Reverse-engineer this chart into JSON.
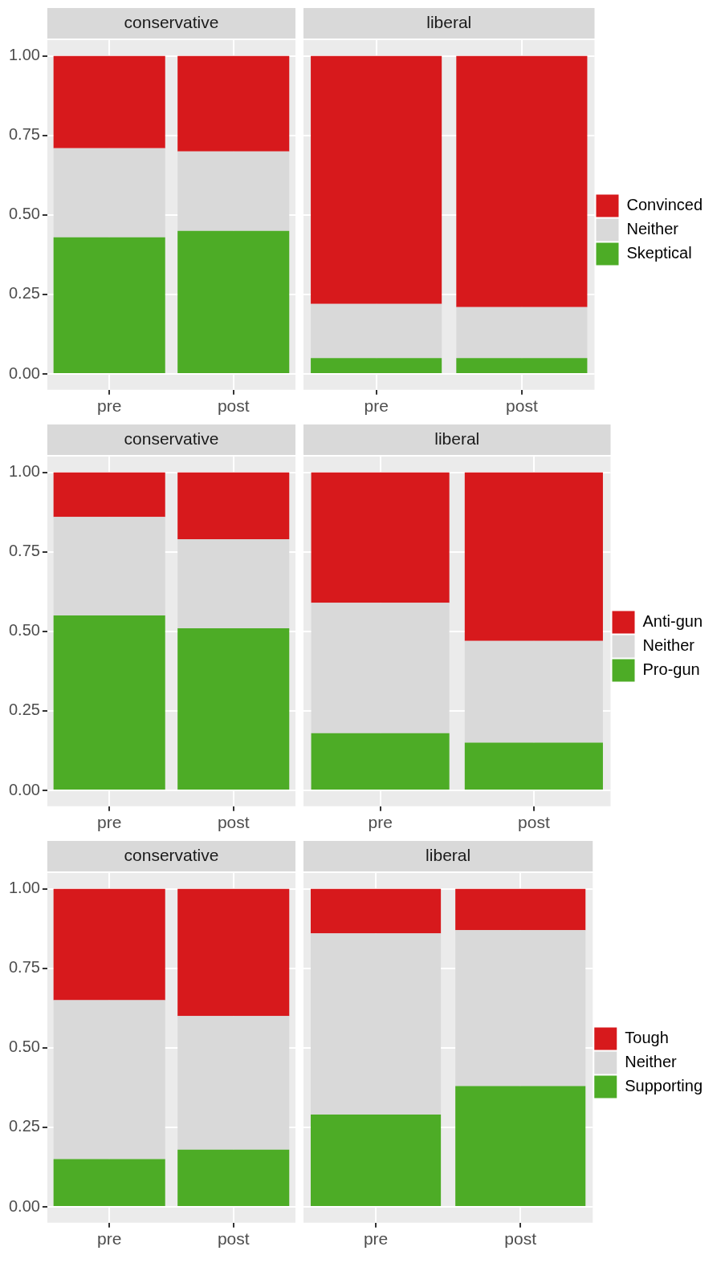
{
  "chart_data": [
    {
      "type": "bar",
      "title": "conservative",
      "categories": [
        "pre",
        "post"
      ],
      "stacked": true,
      "grid": true,
      "legend": false,
      "ylim": [
        -0.05,
        1.05
      ],
      "yticks": [
        {
          "value": 0,
          "label": "0.00"
        },
        {
          "value": 0.25,
          "label": "0.25"
        },
        {
          "value": 0.5,
          "label": "0.50"
        },
        {
          "value": 0.75,
          "label": "0.75"
        },
        {
          "value": 1,
          "label": "1.00"
        }
      ],
      "series": [
        {
          "color": "#4dac26",
          "values": [
            0.43,
            0.45
          ]
        },
        {
          "color": "#d9d9d9",
          "values": [
            0.28,
            0.25
          ]
        },
        {
          "color": "#d7191c",
          "values": [
            0.29,
            0.3
          ]
        }
      ]
    },
    {
      "type": "bar",
      "title": "liberal",
      "categories": [
        "pre",
        "post"
      ],
      "stacked": true,
      "grid": true,
      "legend": "right",
      "tick_labels": "x",
      "ylim": [
        -0.05,
        1.05
      ],
      "yticks": [
        0,
        0.25,
        0.5,
        0.75,
        1
      ],
      "series": [
        {
          "name": "Skeptical",
          "color": "#4dac26",
          "values": [
            0.05,
            0.05
          ]
        },
        {
          "name": "Neither",
          "color": "#d9d9d9",
          "values": [
            0.17,
            0.16
          ]
        },
        {
          "name": "Convinced",
          "color": "#d7191c",
          "values": [
            0.78,
            0.79
          ]
        }
      ]
    },
    {
      "type": "bar",
      "title": "conservative",
      "categories": [
        "pre",
        "post"
      ],
      "stacked": true,
      "grid": true,
      "legend": false,
      "ylim": [
        -0.05,
        1.05
      ],
      "yticks": [
        {
          "value": 0,
          "label": "0.00"
        },
        {
          "value": 0.25,
          "label": "0.25"
        },
        {
          "value": 0.5,
          "label": "0.50"
        },
        {
          "value": 0.75,
          "label": "0.75"
        },
        {
          "value": 1,
          "label": "1.00"
        }
      ],
      "series": [
        {
          "color": "#4dac26",
          "values": [
            0.55,
            0.51
          ]
        },
        {
          "color": "#d9d9d9",
          "values": [
            0.31,
            0.28
          ]
        },
        {
          "color": "#d7191c",
          "values": [
            0.14,
            0.21
          ]
        }
      ]
    },
    {
      "type": "bar",
      "title": "liberal",
      "categories": [
        "pre",
        "post"
      ],
      "stacked": true,
      "grid": true,
      "legend": "right",
      "tick_labels": "x",
      "ylim": [
        -0.05,
        1.05
      ],
      "yticks": [
        0,
        0.25,
        0.5,
        0.75,
        1
      ],
      "series": [
        {
          "name": "Pro-gun",
          "color": "#4dac26",
          "values": [
            0.18,
            0.15
          ]
        },
        {
          "name": "Neither",
          "color": "#d9d9d9",
          "values": [
            0.41,
            0.32
          ]
        },
        {
          "name": "Anti-gun",
          "color": "#d7191c",
          "values": [
            0.41,
            0.53
          ]
        }
      ]
    },
    {
      "type": "bar",
      "title": "conservative",
      "categories": [
        "pre",
        "post"
      ],
      "stacked": true,
      "grid": true,
      "legend": false,
      "ylim": [
        -0.05,
        1.05
      ],
      "yticks": [
        {
          "value": 0,
          "label": "0.00"
        },
        {
          "value": 0.25,
          "label": "0.25"
        },
        {
          "value": 0.5,
          "label": "0.50"
        },
        {
          "value": 0.75,
          "label": "0.75"
        },
        {
          "value": 1,
          "label": "1.00"
        }
      ],
      "series": [
        {
          "color": "#4dac26",
          "values": [
            0.15,
            0.18
          ]
        },
        {
          "color": "#d9d9d9",
          "values": [
            0.5,
            0.42
          ]
        },
        {
          "color": "#d7191c",
          "values": [
            0.35,
            0.4
          ]
        }
      ]
    },
    {
      "type": "bar",
      "title": "liberal",
      "categories": [
        "pre",
        "post"
      ],
      "stacked": true,
      "grid": true,
      "legend": "right",
      "tick_labels": "x",
      "ylim": [
        -0.05,
        1.05
      ],
      "yticks": [
        0,
        0.25,
        0.5,
        0.75,
        1
      ],
      "series": [
        {
          "name": "Supporting",
          "color": "#4dac26",
          "values": [
            0.29,
            0.38
          ]
        },
        {
          "name": "Neither",
          "color": "#d9d9d9",
          "values": [
            0.57,
            0.49
          ]
        },
        {
          "name": "Tough",
          "color": "#d7191c",
          "values": [
            0.14,
            0.13
          ]
        }
      ]
    }
  ]
}
